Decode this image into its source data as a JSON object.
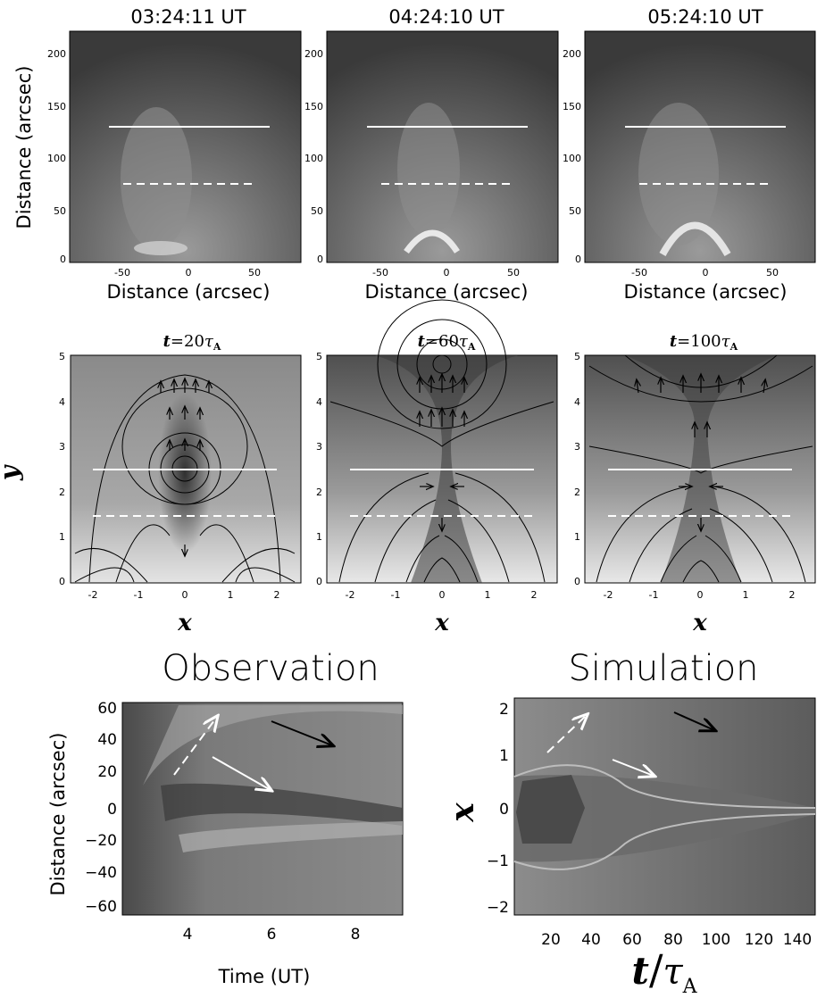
{
  "observation_panels": [
    {
      "time": "03:24:11 UT",
      "xlabel": "Distance (arcsec)",
      "ylabel": "Distance (arcsec)"
    },
    {
      "time": "04:24:10 UT",
      "xlabel": "Distance (arcsec)",
      "ylabel": ""
    },
    {
      "time": "05:24:10 UT",
      "xlabel": "Distance (arcsec)",
      "ylabel": ""
    }
  ],
  "obs_axes": {
    "x_ticks": [
      "-50",
      "0",
      "50"
    ],
    "y_ticks": [
      "0",
      "50",
      "100",
      "150",
      "200"
    ]
  },
  "simulation_panels": [
    {
      "t_value": "20",
      "tau": "τ",
      "tau_sub": "A"
    },
    {
      "t_value": "60",
      "tau": "τ",
      "tau_sub": "A"
    },
    {
      "t_value": "100",
      "tau": "τ",
      "tau_sub": "A"
    }
  ],
  "sim_axes": {
    "t_symbol": "t",
    "equals": "=",
    "xlabel": "x",
    "ylabel": "y",
    "x_ticks": [
      "-2",
      "-1",
      "0",
      "1",
      "2"
    ],
    "y_ticks": [
      "0",
      "1",
      "2",
      "3",
      "4",
      "5"
    ]
  },
  "bottom_left": {
    "title": "Observation",
    "xlabel": "Time (UT)",
    "ylabel": "Distance (arcsec)",
    "x_ticks": [
      "4",
      "6",
      "8"
    ],
    "y_ticks": [
      "60",
      "40",
      "20",
      "0",
      "−20",
      "−40",
      "−60"
    ]
  },
  "bottom_right": {
    "title": "Simulation",
    "xlabel_t": "t",
    "xlabel_slash": "/",
    "xlabel_tau": "τ",
    "xlabel_sub": "A",
    "ylabel": "x",
    "x_ticks": [
      "20",
      "40",
      "60",
      "80",
      "100",
      "120",
      "140"
    ],
    "y_ticks": [
      "2",
      "1",
      "0",
      "−1",
      "−2"
    ]
  },
  "colors": {
    "white_line": "#ffffff",
    "black_arrow": "#000000"
  }
}
